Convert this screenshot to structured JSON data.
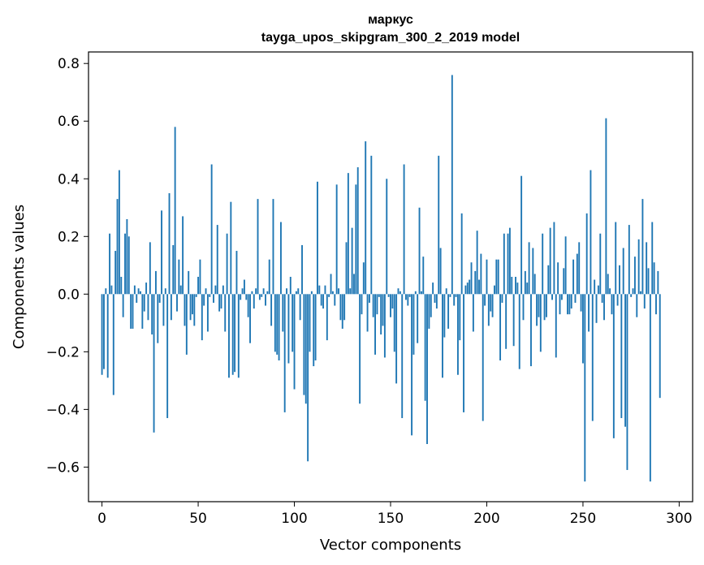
{
  "chart_data": {
    "type": "bar",
    "title": "маркус",
    "subtitle": "tayga_upos_skipgram_300_2_2019 model",
    "xlabel": "Vector components",
    "ylabel": "Components values",
    "xlim": [
      -7,
      307
    ],
    "ylim": [
      -0.72,
      0.84
    ],
    "xticks": [
      0,
      50,
      100,
      150,
      200,
      250,
      300
    ],
    "xtick_labels": [
      "0",
      "50",
      "100",
      "150",
      "200",
      "250",
      "300"
    ],
    "yticks": [
      -0.6,
      -0.4,
      -0.2,
      0.0,
      0.2,
      0.4,
      0.6,
      0.8
    ],
    "ytick_labels": [
      "−0.6",
      "−0.4",
      "−0.2",
      "0.0",
      "0.2",
      "0.4",
      "0.6",
      "0.8"
    ],
    "bar_color": "#1f77b4",
    "x_start": 0,
    "values": [
      -0.28,
      -0.26,
      0.02,
      -0.29,
      0.21,
      0.03,
      -0.35,
      0.15,
      0.33,
      0.43,
      0.06,
      -0.08,
      0.21,
      0.26,
      0.2,
      -0.12,
      -0.12,
      0.03,
      -0.03,
      0.02,
      0.01,
      -0.12,
      -0.06,
      0.04,
      -0.09,
      0.18,
      -0.14,
      -0.48,
      0.08,
      -0.17,
      -0.03,
      0.29,
      -0.11,
      0.02,
      -0.43,
      0.35,
      -0.09,
      0.17,
      0.58,
      -0.06,
      0.12,
      0.03,
      0.27,
      -0.11,
      -0.21,
      0.08,
      -0.09,
      -0.07,
      -0.11,
      -0.01,
      0.06,
      0.12,
      -0.16,
      -0.04,
      0.02,
      -0.13,
      -0.01,
      0.45,
      -0.03,
      0.03,
      0.24,
      -0.06,
      -0.05,
      0.03,
      -0.13,
      0.21,
      -0.29,
      0.32,
      -0.28,
      -0.27,
      0.15,
      -0.29,
      -0.02,
      0.02,
      0.05,
      -0.02,
      -0.08,
      -0.17,
      0.01,
      -0.05,
      0.02,
      0.33,
      -0.02,
      -0.01,
      0.02,
      -0.04,
      0.01,
      0.12,
      -0.11,
      0.33,
      -0.2,
      -0.21,
      -0.23,
      0.25,
      -0.13,
      -0.41,
      0.02,
      -0.24,
      0.06,
      -0.2,
      -0.33,
      0.01,
      0.02,
      -0.09,
      0.17,
      -0.35,
      -0.38,
      -0.58,
      -0.2,
      0.01,
      -0.25,
      -0.23,
      0.39,
      0.03,
      -0.04,
      -0.05,
      0.03,
      -0.16,
      -0.01,
      0.07,
      0.01,
      -0.04,
      0.38,
      0.02,
      -0.09,
      -0.12,
      -0.09,
      0.18,
      0.42,
      0.02,
      0.23,
      0.07,
      0.38,
      0.44,
      -0.38,
      -0.07,
      0.11,
      0.53,
      -0.13,
      -0.03,
      0.48,
      -0.08,
      -0.21,
      -0.07,
      -0.01,
      -0.14,
      -0.11,
      -0.22,
      0.4,
      -0.01,
      -0.08,
      -0.05,
      -0.2,
      -0.31,
      0.02,
      0.01,
      -0.43,
      0.45,
      -0.02,
      -0.04,
      -0.01,
      -0.49,
      -0.21,
      0.01,
      -0.17,
      0.3,
      0.01,
      0.13,
      -0.37,
      -0.52,
      -0.12,
      -0.08,
      0.04,
      -0.03,
      -0.05,
      0.48,
      0.16,
      -0.29,
      -0.15,
      0.02,
      -0.12,
      -0.01,
      0.76,
      -0.04,
      -0.01,
      -0.28,
      -0.16,
      0.28,
      -0.41,
      0.03,
      0.04,
      0.05,
      0.11,
      -0.13,
      0.08,
      0.22,
      0.05,
      0.14,
      -0.44,
      -0.04,
      0.12,
      -0.11,
      -0.06,
      -0.08,
      0.03,
      0.12,
      0.12,
      -0.23,
      -0.03,
      0.21,
      -0.19,
      0.21,
      0.23,
      0.06,
      -0.18,
      0.06,
      0.04,
      -0.26,
      0.41,
      -0.09,
      0.08,
      0.04,
      0.18,
      -0.25,
      0.16,
      0.07,
      -0.11,
      -0.08,
      -0.2,
      0.21,
      -0.09,
      -0.08,
      0.1,
      0.23,
      -0.02,
      0.25,
      -0.22,
      0.11,
      -0.07,
      -0.02,
      0.09,
      0.2,
      -0.07,
      -0.07,
      -0.05,
      0.12,
      -0.03,
      0.14,
      0.18,
      -0.06,
      -0.24,
      -0.65,
      0.28,
      -0.13,
      0.43,
      -0.44,
      0.05,
      -0.1,
      0.03,
      0.21,
      -0.03,
      -0.09,
      0.61,
      0.07,
      0.02,
      -0.07,
      -0.5,
      0.25,
      -0.04,
      0.1,
      -0.43,
      0.16,
      -0.46,
      -0.61,
      0.24,
      -0.01,
      0.02,
      0.13,
      -0.08,
      0.19,
      0.01,
      0.33,
      -0.05,
      0.18,
      0.09,
      -0.65,
      0.25,
      0.11,
      -0.07,
      0.08,
      -0.36
    ]
  }
}
